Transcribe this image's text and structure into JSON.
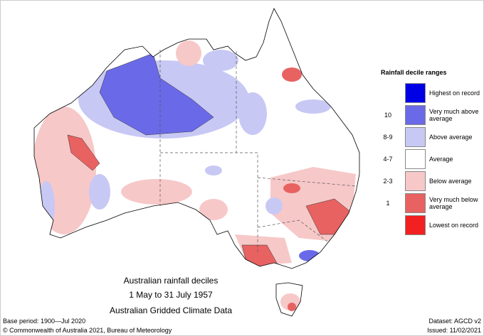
{
  "title": [
    "Australian rainfall deciles",
    "1 May to 31 July 1957",
    "Australian Gridded Climate Data"
  ],
  "legend": {
    "title": "Rainfall decile ranges",
    "items": [
      {
        "label": "Highest on record",
        "color": "#0000e6"
      },
      {
        "range": "10",
        "label": "Very much above average",
        "color": "#6a6ae8"
      },
      {
        "range": "8-9",
        "label": "Above average",
        "color": "#c8c8f5"
      },
      {
        "range": "4-7",
        "label": "Average",
        "color": "#ffffff"
      },
      {
        "range": "2-3",
        "label": "Below average",
        "color": "#f7c8c8"
      },
      {
        "range": "1",
        "label": "Very much below average",
        "color": "#e86262"
      },
      {
        "label": "Lowest on record",
        "color": "#f22020"
      }
    ]
  },
  "footer": {
    "base_period": "Base period: 1900—Jul 2020",
    "dataset": "Dataset: AGCD v2",
    "copyright": "© Commonwealth of Australia 2021, Bureau of Meteorology",
    "issued": "Issued: 11/02/2021"
  }
}
